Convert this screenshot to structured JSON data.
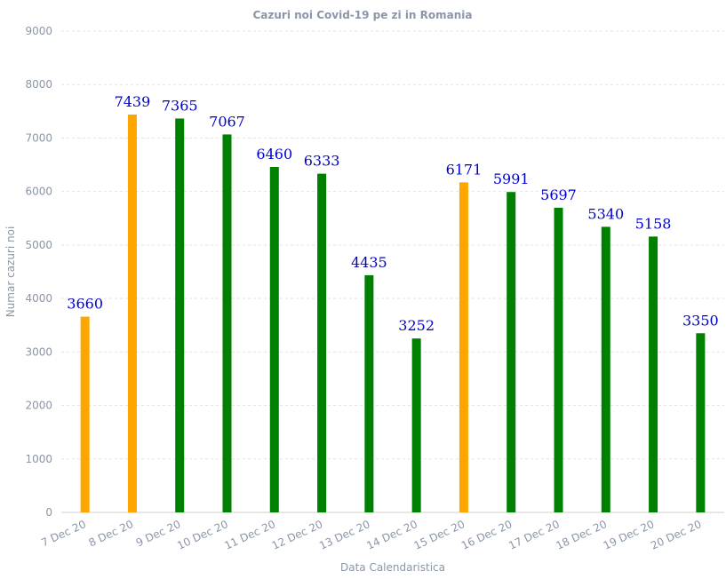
{
  "chart_data": {
    "type": "bar",
    "title": "Cazuri noi Covid-19 pe zi in Romania",
    "xlabel": "Data Calendaristica",
    "ylabel": "Numar cazuri noi",
    "ylim": [
      0,
      9000
    ],
    "yticks": [
      0,
      1000,
      2000,
      3000,
      4000,
      5000,
      6000,
      7000,
      8000,
      9000
    ],
    "grid": true,
    "categories": [
      "7 Dec 20",
      "8 Dec 20",
      "9 Dec 20",
      "10 Dec 20",
      "11 Dec 20",
      "12 Dec 20",
      "13 Dec 20",
      "14 Dec 20",
      "15 Dec 20",
      "16 Dec 20",
      "17 Dec 20",
      "18 Dec 20",
      "19 Dec 20",
      "20 Dec 20"
    ],
    "values": [
      3660,
      7439,
      7365,
      7067,
      6460,
      6333,
      4435,
      3252,
      6171,
      5991,
      5697,
      5340,
      5158,
      3350
    ],
    "bar_colors": [
      "#ffa500",
      "#ffa500",
      "#008000",
      "#008000",
      "#008000",
      "#008000",
      "#008000",
      "#008000",
      "#ffa500",
      "#008000",
      "#008000",
      "#008000",
      "#008000",
      "#008000"
    ],
    "data_label_color": "#0000cc"
  }
}
